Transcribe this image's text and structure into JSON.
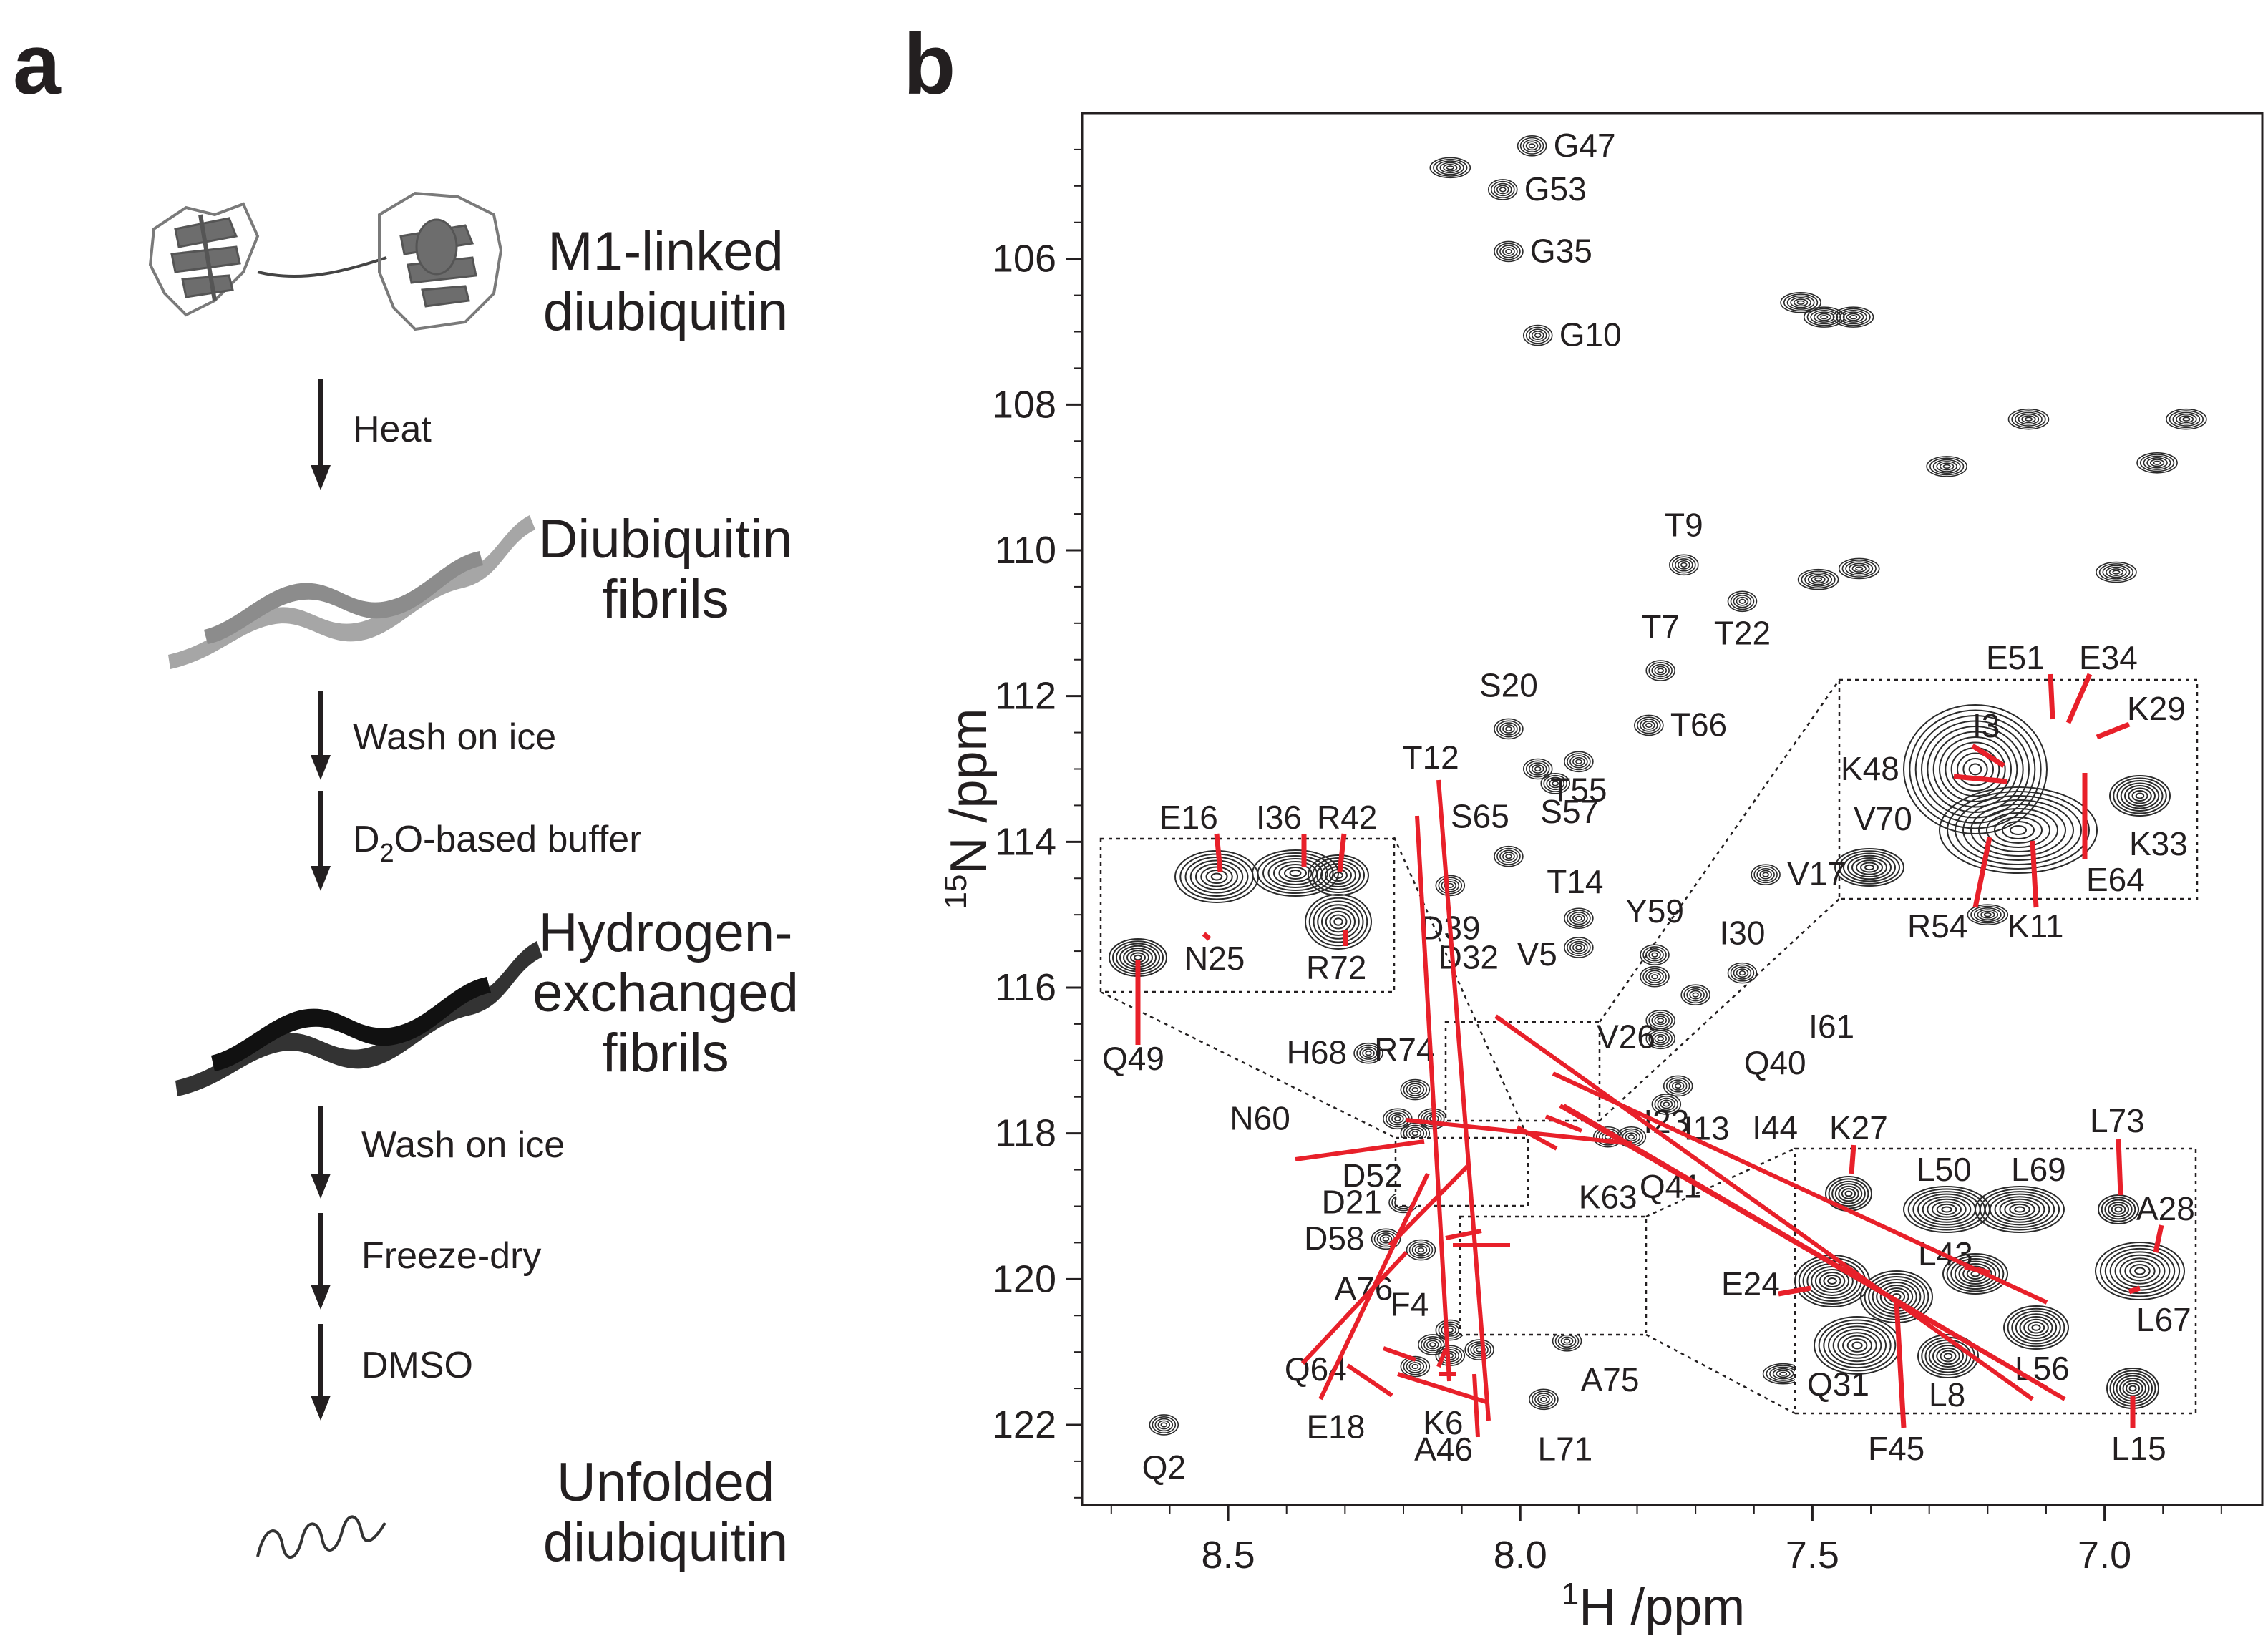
{
  "panel_a": {
    "letter": "a",
    "steps": [
      {
        "line1": "M1-linked",
        "line2": "diubiquitin"
      },
      {
        "line1": "Diubiquitin",
        "line2": "fibrils"
      },
      {
        "line1": "Hydrogen-",
        "line2": "exchanged",
        "line3": "fibrils"
      },
      {
        "line1": "Unfolded",
        "line2": "diubiquitin"
      }
    ],
    "conditions": {
      "heat": "Heat",
      "wash1": "Wash on ice",
      "d2o_pre": "D",
      "d2o_sub": "2",
      "d2o_post": "O-based buffer",
      "wash2": "Wash on ice",
      "freeze": "Freeze-dry",
      "dmso": "DMSO"
    },
    "colors": {
      "light_fibril": "#a6a6a6",
      "dark_fibril": "#333333",
      "arrow": "#231f20"
    }
  },
  "panel_b": {
    "letter": "b",
    "chart_data": {
      "type": "scatter",
      "title": "",
      "xlabel_sup": "1",
      "xlabel": "H /ppm",
      "ylabel_sup": "15",
      "ylabel": "N /ppm",
      "xlim": [
        8.75,
        6.73
      ],
      "ylim": [
        104.0,
        123.1
      ],
      "x_ticks": [
        "8.5",
        "8.0",
        "7.5",
        "7.0"
      ],
      "y_ticks": [
        "106",
        "108",
        "110",
        "112",
        "114",
        "116",
        "118",
        "120",
        "122"
      ],
      "label_color": "#e8202a",
      "peaks": [
        {
          "id": "G47",
          "x": 7.98,
          "y": 104.45
        },
        {
          "id": "G53",
          "x": 8.03,
          "y": 105.05
        },
        {
          "id": "G35",
          "x": 8.02,
          "y": 105.9
        },
        {
          "id": "G10",
          "x": 7.97,
          "y": 107.05
        },
        {
          "id": "T9",
          "x": 7.72,
          "y": 110.2
        },
        {
          "id": "T22",
          "x": 7.62,
          "y": 110.7
        },
        {
          "id": "T7",
          "x": 7.76,
          "y": 111.65
        },
        {
          "id": "S20",
          "x": 8.02,
          "y": 112.45
        },
        {
          "id": "T66",
          "x": 7.78,
          "y": 112.4
        },
        {
          "id": "T12",
          "x": 7.97,
          "y": 113.0
        },
        {
          "id": "T55",
          "x": 7.9,
          "y": 112.9
        },
        {
          "id": "S57",
          "x": 7.94,
          "y": 113.2
        },
        {
          "id": "S65",
          "x": 8.02,
          "y": 114.2
        },
        {
          "id": "D39",
          "x": 8.12,
          "y": 114.6
        },
        {
          "id": "V17",
          "x": 7.58,
          "y": 114.45
        },
        {
          "id": "T14",
          "x": 7.9,
          "y": 115.05
        },
        {
          "id": "V5",
          "x": 7.9,
          "y": 115.45
        },
        {
          "id": "Y59",
          "x": 7.77,
          "y": 115.55
        },
        {
          "id": "V26",
          "x": 7.77,
          "y": 115.85
        },
        {
          "id": "I30",
          "x": 7.62,
          "y": 115.8
        },
        {
          "id": "I61",
          "x": 7.7,
          "y": 116.1
        },
        {
          "id": "Q40",
          "x": 7.76,
          "y": 116.45
        },
        {
          "id": "I44",
          "x": 7.76,
          "y": 116.7
        },
        {
          "id": "I13",
          "x": 7.73,
          "y": 117.35
        },
        {
          "id": "R74",
          "x": 8.18,
          "y": 117.4
        },
        {
          "id": "H68",
          "x": 8.26,
          "y": 116.9
        },
        {
          "id": "D32",
          "x": 8.15,
          "y": 117.8
        },
        {
          "id": "N60",
          "x": 8.21,
          "y": 117.8
        },
        {
          "id": "D52",
          "x": 8.18,
          "y": 118.0
        },
        {
          "id": "K63",
          "x": 7.85,
          "y": 118.05
        },
        {
          "id": "Q41",
          "x": 7.81,
          "y": 118.05
        },
        {
          "id": "I23",
          "x": 7.75,
          "y": 117.6
        },
        {
          "id": "D21",
          "x": 8.2,
          "y": 118.95
        },
        {
          "id": "D58",
          "x": 8.23,
          "y": 119.45
        },
        {
          "id": "A76",
          "x": 8.17,
          "y": 119.6
        },
        {
          "id": "F4",
          "x": 8.12,
          "y": 120.7
        },
        {
          "id": "Q64",
          "x": 8.15,
          "y": 120.9
        },
        {
          "id": "E18",
          "x": 8.18,
          "y": 121.2
        },
        {
          "id": "K6",
          "x": 8.12,
          "y": 121.05
        },
        {
          "id": "A46",
          "x": 8.07,
          "y": 120.97
        },
        {
          "id": "A75",
          "x": 7.92,
          "y": 120.85
        },
        {
          "id": "L71",
          "x": 7.96,
          "y": 121.65
        },
        {
          "id": "Q2",
          "x": 8.61,
          "y": 122.0
        }
      ],
      "insets": [
        {
          "region": "left",
          "labels": [
            "E16",
            "I36",
            "R42",
            "N25",
            "R72",
            "Q49"
          ]
        },
        {
          "region": "upper-right",
          "labels": [
            "E51",
            "E34",
            "I3",
            "K29",
            "K48",
            "V70",
            "K33",
            "E64",
            "R54",
            "K11"
          ]
        },
        {
          "region": "lower-right",
          "labels": [
            "K27",
            "L73",
            "L50",
            "L69",
            "A28",
            "L43",
            "E24",
            "L67",
            "Q31",
            "F45",
            "L8",
            "L56",
            "L15"
          ]
        }
      ]
    }
  }
}
